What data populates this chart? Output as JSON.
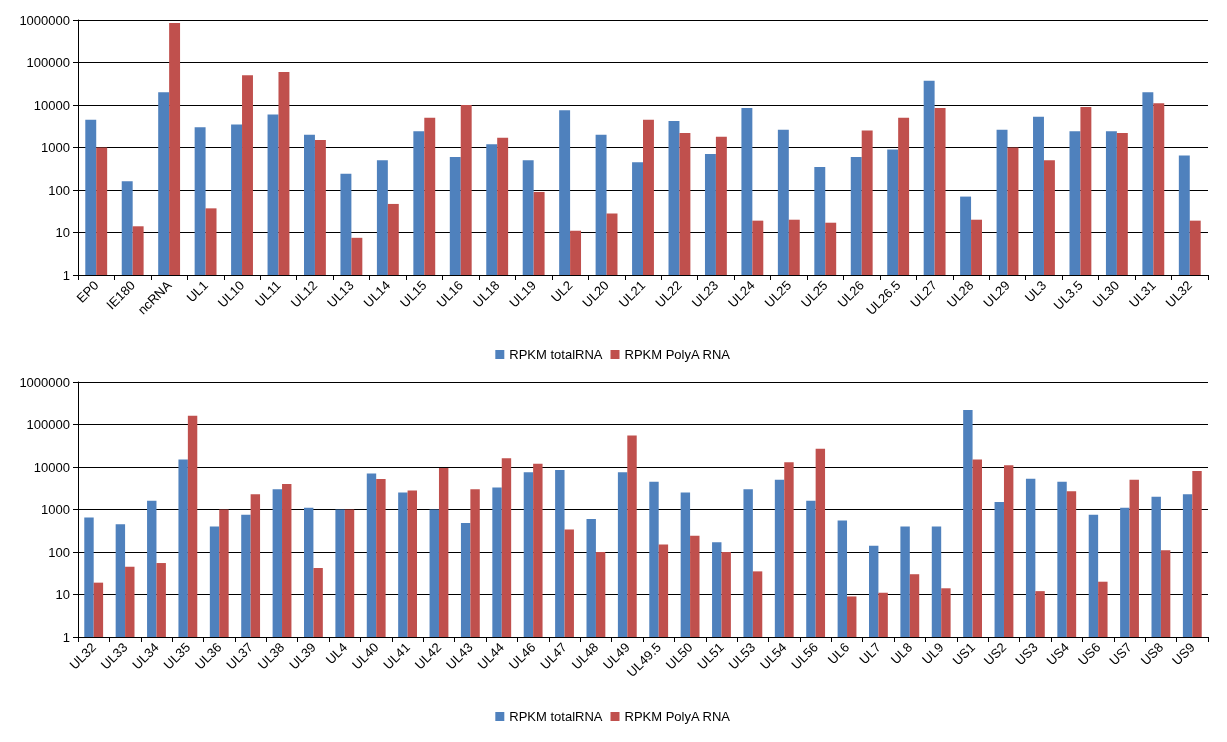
{
  "chart_data": [
    {
      "type": "bar",
      "categories": [
        "EP0",
        "IE180",
        "ncRNA",
        "UL1",
        "UL10",
        "UL11",
        "UL12",
        "UL13",
        "UL14",
        "UL15",
        "UL16",
        "UL18",
        "UL19",
        "UL2",
        "UL20",
        "UL21",
        "UL22",
        "UL23",
        "UL24",
        "UL25",
        "UL25",
        "UL26",
        "UL26.5",
        "UL27",
        "UL28",
        "UL29",
        "UL3",
        "UL3.5",
        "UL30",
        "UL31",
        "UL32"
      ],
      "series": [
        {
          "name": "RPKM totalRNA",
          "color": "#4f81bd",
          "values": [
            4500,
            160,
            20000,
            3000,
            3500,
            6000,
            2000,
            240,
            500,
            2400,
            600,
            1200,
            500,
            7500,
            2000,
            450,
            4200,
            700,
            8500,
            2600,
            350,
            600,
            900,
            37000,
            70,
            2600,
            5300,
            2400,
            2400,
            20000,
            650
          ]
        },
        {
          "name": "RPKM PolyA RNA",
          "color": "#c0504d",
          "values": [
            1000,
            14,
            850000,
            37,
            50000,
            60000,
            1500,
            7.5,
            47,
            5000,
            10000,
            1700,
            90,
            11,
            28,
            4500,
            2200,
            1800,
            19,
            20,
            17,
            2500,
            5000,
            8500,
            20,
            1000,
            500,
            9000,
            2200,
            11000,
            19
          ]
        }
      ],
      "log": true,
      "ylim": [
        1,
        1000000
      ],
      "yticks": [
        1,
        10,
        100,
        1000,
        10000,
        100000,
        1000000
      ],
      "grid": "y",
      "legend": "bottom"
    },
    {
      "type": "bar",
      "categories": [
        "UL32",
        "UL33",
        "UL34",
        "UL35",
        "UL36",
        "UL37",
        "UL38",
        "UL39",
        "UL4",
        "UL40",
        "UL41",
        "UL42",
        "UL43",
        "UL44",
        "UL46",
        "UL47",
        "UL48",
        "UL49",
        "UL49.5",
        "UL50",
        "UL51",
        "UL53",
        "UL54",
        "UL56",
        "UL6",
        "UL7",
        "UL8",
        "UL9",
        "US1",
        "US2",
        "US3",
        "US4",
        "US6",
        "US7",
        "US8",
        "US9"
      ],
      "series": [
        {
          "name": "RPKM totalRNA",
          "color": "#4f81bd",
          "values": [
            650,
            450,
            1600,
            15000,
            400,
            750,
            3000,
            1100,
            1000,
            7000,
            2500,
            1000,
            480,
            3300,
            7500,
            8500,
            600,
            7500,
            4500,
            2500,
            170,
            3000,
            5000,
            1600,
            550,
            140,
            400,
            400,
            220000,
            1500,
            5300,
            4500,
            750,
            1100,
            2000,
            2300
          ]
        },
        {
          "name": "RPKM PolyA RNA",
          "color": "#c0504d",
          "values": [
            19,
            45,
            55,
            160000,
            1000,
            2300,
            4000,
            42,
            1000,
            5200,
            2800,
            9500,
            3000,
            16000,
            12000,
            340,
            100,
            55000,
            150,
            240,
            100,
            35,
            13000,
            27000,
            9,
            11,
            30,
            14,
            15000,
            11000,
            12,
            2700,
            20,
            5000,
            110,
            8000
          ]
        }
      ],
      "log": true,
      "ylim": [
        1,
        1000000
      ],
      "yticks": [
        1,
        10,
        100,
        1000,
        10000,
        100000,
        1000000
      ],
      "grid": "y",
      "legend": "bottom"
    }
  ]
}
